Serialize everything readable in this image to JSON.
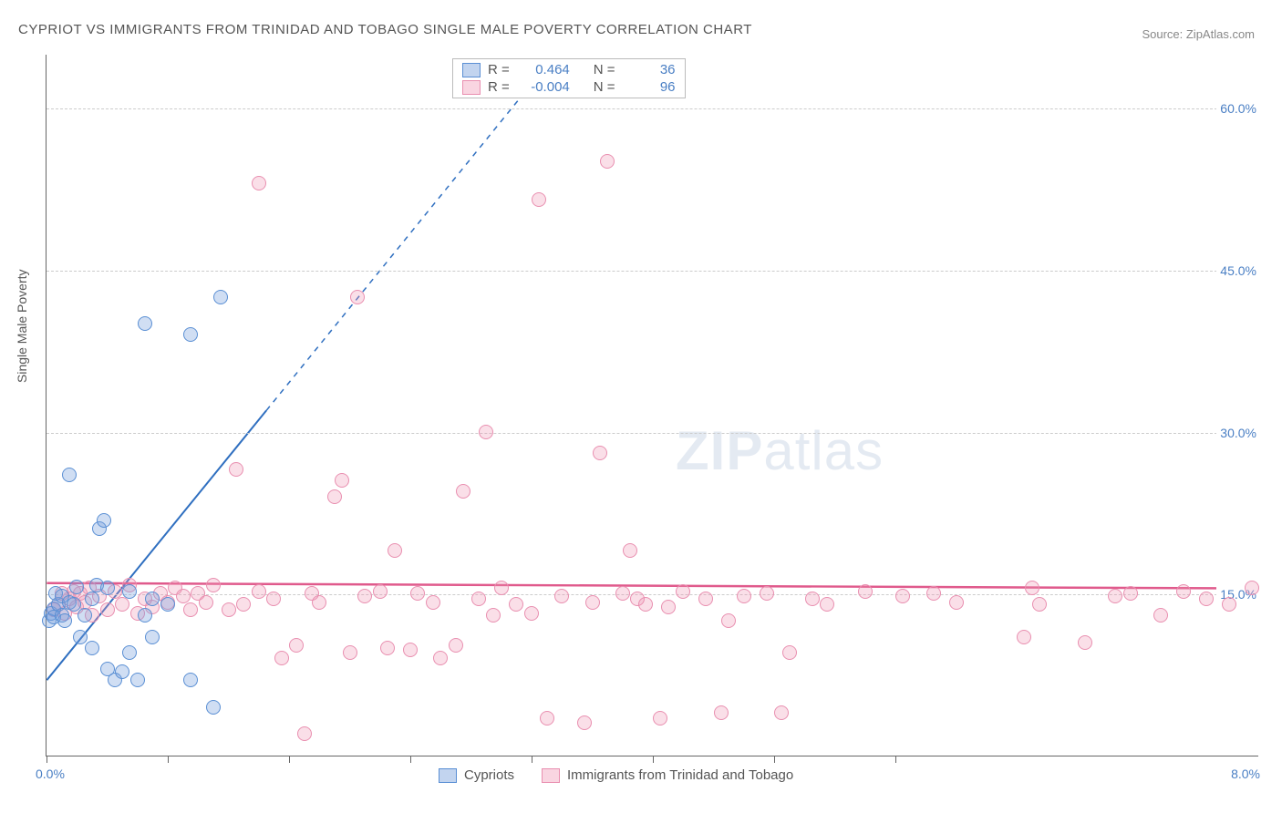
{
  "title": "CYPRIOT VS IMMIGRANTS FROM TRINIDAD AND TOBAGO SINGLE MALE POVERTY CORRELATION CHART",
  "source_label": "Source: ZipAtlas.com",
  "y_axis_label": "Single Male Poverty",
  "watermark": "ZIPatlas",
  "chart": {
    "type": "scatter",
    "xlim": [
      0,
      8.0
    ],
    "ylim": [
      0,
      65
    ],
    "x_origin_label": "0.0%",
    "x_max_label": "8.0%",
    "x_ticks": [
      0,
      0.8,
      1.6,
      2.4,
      3.2,
      4.0,
      4.8,
      5.6
    ],
    "y_gridlines": [
      15.0,
      30.0,
      45.0,
      60.0
    ],
    "y_tick_labels": [
      "15.0%",
      "30.0%",
      "45.0%",
      "60.0%"
    ],
    "background_color": "#ffffff",
    "grid_color": "#cccccc",
    "tick_label_color": "#4a7fc4",
    "axis_color": "#666666",
    "point_radius": 8,
    "series": {
      "blue": {
        "label": "Cypriots",
        "fill": "rgba(120,160,220,0.35)",
        "stroke": "#5a8fd4",
        "r_value": "0.464",
        "n_value": "36",
        "trend": {
          "solid": {
            "x1": 0.0,
            "y1": 7,
            "x2": 1.45,
            "y2": 32
          },
          "dashed": {
            "x1": 1.45,
            "y1": 32,
            "x2": 3.3,
            "y2": 64
          },
          "color": "#2f6fc0",
          "width": 2
        },
        "points": [
          [
            0.02,
            12.5
          ],
          [
            0.03,
            13.2
          ],
          [
            0.05,
            13.6
          ],
          [
            0.05,
            12.8
          ],
          [
            0.08,
            14.0
          ],
          [
            0.1,
            13.0
          ],
          [
            0.12,
            12.5
          ],
          [
            0.06,
            15.0
          ],
          [
            0.1,
            14.8
          ],
          [
            0.15,
            14.2
          ],
          [
            0.18,
            14.0
          ],
          [
            0.2,
            15.6
          ],
          [
            0.25,
            13.0
          ],
          [
            0.3,
            14.5
          ],
          [
            0.33,
            15.8
          ],
          [
            0.4,
            15.5
          ],
          [
            0.35,
            21.0
          ],
          [
            0.38,
            21.8
          ],
          [
            0.15,
            26.0
          ],
          [
            0.3,
            10.0
          ],
          [
            0.4,
            8.0
          ],
          [
            0.45,
            7.0
          ],
          [
            0.5,
            7.8
          ],
          [
            0.55,
            9.5
          ],
          [
            0.6,
            7.0
          ],
          [
            0.65,
            13.0
          ],
          [
            0.7,
            14.5
          ],
          [
            0.8,
            14.0
          ],
          [
            0.95,
            7.0
          ],
          [
            1.1,
            4.5
          ],
          [
            0.55,
            15.2
          ],
          [
            0.65,
            40.0
          ],
          [
            0.95,
            39.0
          ],
          [
            1.15,
            42.5
          ],
          [
            0.7,
            11.0
          ],
          [
            0.22,
            11.0
          ]
        ]
      },
      "pink": {
        "label": "Immigrants from Trinidad and Tobago",
        "fill": "rgba(240,150,180,0.30)",
        "stroke": "#e98fb0",
        "r_value": "-0.004",
        "n_value": "96",
        "trend": {
          "solid": {
            "x1": 0.0,
            "y1": 16.0,
            "x2": 8.0,
            "y2": 15.5
          },
          "color": "#e05a8c",
          "width": 2.5
        },
        "points": [
          [
            0.05,
            13.5
          ],
          [
            0.08,
            14.0
          ],
          [
            0.1,
            15.0
          ],
          [
            0.12,
            13.2
          ],
          [
            0.15,
            14.5
          ],
          [
            0.18,
            15.2
          ],
          [
            0.2,
            13.8
          ],
          [
            0.22,
            15.0
          ],
          [
            0.25,
            14.2
          ],
          [
            0.28,
            15.5
          ],
          [
            0.3,
            13.0
          ],
          [
            0.35,
            14.8
          ],
          [
            0.4,
            13.5
          ],
          [
            0.45,
            15.2
          ],
          [
            0.5,
            14.0
          ],
          [
            0.55,
            15.8
          ],
          [
            0.6,
            13.2
          ],
          [
            0.65,
            14.5
          ],
          [
            0.7,
            13.8
          ],
          [
            0.75,
            15.0
          ],
          [
            0.8,
            14.2
          ],
          [
            0.85,
            15.5
          ],
          [
            0.9,
            14.8
          ],
          [
            0.95,
            13.5
          ],
          [
            1.0,
            15.0
          ],
          [
            1.05,
            14.2
          ],
          [
            1.1,
            15.8
          ],
          [
            1.2,
            13.5
          ],
          [
            1.25,
            26.5
          ],
          [
            1.3,
            14.0
          ],
          [
            1.4,
            15.2
          ],
          [
            1.5,
            14.5
          ],
          [
            1.4,
            53.0
          ],
          [
            1.55,
            9.0
          ],
          [
            1.65,
            10.2
          ],
          [
            1.7,
            2.0
          ],
          [
            1.75,
            15.0
          ],
          [
            1.8,
            14.2
          ],
          [
            1.9,
            24.0
          ],
          [
            1.95,
            25.5
          ],
          [
            2.0,
            9.5
          ],
          [
            2.05,
            42.5
          ],
          [
            2.1,
            14.8
          ],
          [
            2.2,
            15.2
          ],
          [
            2.25,
            10.0
          ],
          [
            2.3,
            19.0
          ],
          [
            2.4,
            9.8
          ],
          [
            2.45,
            15.0
          ],
          [
            2.55,
            14.2
          ],
          [
            2.6,
            9.0
          ],
          [
            2.7,
            10.2
          ],
          [
            2.75,
            24.5
          ],
          [
            2.85,
            14.5
          ],
          [
            2.9,
            30.0
          ],
          [
            2.95,
            13.0
          ],
          [
            3.0,
            15.5
          ],
          [
            3.1,
            14.0
          ],
          [
            3.2,
            13.2
          ],
          [
            3.25,
            51.5
          ],
          [
            3.3,
            3.5
          ],
          [
            3.4,
            14.8
          ],
          [
            3.55,
            3.0
          ],
          [
            3.6,
            14.2
          ],
          [
            3.65,
            28.0
          ],
          [
            3.7,
            55.0
          ],
          [
            3.8,
            15.0
          ],
          [
            3.85,
            19.0
          ],
          [
            3.9,
            14.5
          ],
          [
            3.95,
            14.0
          ],
          [
            4.05,
            3.5
          ],
          [
            4.1,
            13.8
          ],
          [
            4.2,
            15.2
          ],
          [
            4.35,
            14.5
          ],
          [
            4.45,
            4.0
          ],
          [
            4.5,
            12.5
          ],
          [
            4.6,
            14.8
          ],
          [
            4.75,
            15.0
          ],
          [
            4.85,
            4.0
          ],
          [
            4.9,
            9.5
          ],
          [
            5.05,
            14.5
          ],
          [
            5.15,
            14.0
          ],
          [
            5.4,
            15.2
          ],
          [
            5.65,
            14.8
          ],
          [
            5.85,
            15.0
          ],
          [
            6.0,
            14.2
          ],
          [
            6.45,
            11.0
          ],
          [
            6.5,
            15.5
          ],
          [
            6.55,
            14.0
          ],
          [
            6.85,
            10.5
          ],
          [
            7.05,
            14.8
          ],
          [
            7.15,
            15.0
          ],
          [
            7.35,
            13.0
          ],
          [
            7.5,
            15.2
          ],
          [
            7.65,
            14.5
          ],
          [
            7.8,
            14.0
          ],
          [
            7.95,
            15.5
          ]
        ]
      }
    }
  },
  "legend_top": {
    "r_label": "R =",
    "n_label": "N ="
  },
  "legend_bottom": {
    "blue_label": "Cypriots",
    "pink_label": "Immigrants from Trinidad and Tobago"
  }
}
